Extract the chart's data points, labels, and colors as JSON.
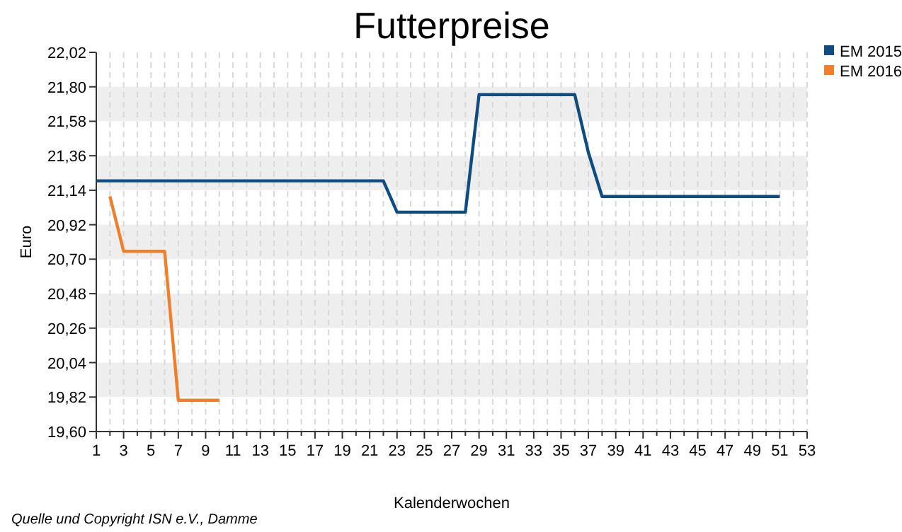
{
  "chart_data": {
    "type": "line",
    "title": "Futterpreise",
    "xlabel": "Kalenderwochen",
    "ylabel": "Euro",
    "annotations": [
      "Quelle und Copyright ISN e.V., Damme"
    ],
    "xlim": [
      1,
      53
    ],
    "xticks": [
      1,
      {
        "value": 2,
        "label": null
      },
      3,
      {
        "value": 4,
        "label": null
      },
      5,
      {
        "value": 6,
        "label": null
      },
      7,
      {
        "value": 8,
        "label": null
      },
      9,
      {
        "value": 10,
        "label": null
      },
      11,
      {
        "value": 12,
        "label": null
      },
      13,
      {
        "value": 14,
        "label": null
      },
      15,
      {
        "value": 16,
        "label": null
      },
      17,
      {
        "value": 18,
        "label": null
      },
      19,
      {
        "value": 20,
        "label": null
      },
      21,
      {
        "value": 22,
        "label": null
      },
      23,
      {
        "value": 24,
        "label": null
      },
      25,
      {
        "value": 26,
        "label": null
      },
      27,
      {
        "value": 28,
        "label": null
      },
      29,
      {
        "value": 30,
        "label": null
      },
      31,
      {
        "value": 32,
        "label": null
      },
      33,
      {
        "value": 34,
        "label": null
      },
      35,
      {
        "value": 36,
        "label": null
      },
      37,
      {
        "value": 38,
        "label": null
      },
      39,
      {
        "value": 40,
        "label": null
      },
      41,
      {
        "value": 42,
        "label": null
      },
      43,
      {
        "value": 44,
        "label": null
      },
      45,
      {
        "value": 46,
        "label": null
      },
      47,
      {
        "value": 48,
        "label": null
      },
      49,
      {
        "value": 50,
        "label": null
      },
      51,
      {
        "value": 52,
        "label": null
      },
      53
    ],
    "ylim": [
      19.6,
      22.02
    ],
    "yticks": [
      {
        "value": 19.6,
        "label": "19,60"
      },
      {
        "value": 19.82,
        "label": "19,82"
      },
      {
        "value": 20.04,
        "label": "20,04"
      },
      {
        "value": 20.26,
        "label": "20,26"
      },
      {
        "value": 20.48,
        "label": "20,48"
      },
      {
        "value": 20.7,
        "label": "20,70"
      },
      {
        "value": 20.92,
        "label": "20,92"
      },
      {
        "value": 21.14,
        "label": "21,14"
      },
      {
        "value": 21.36,
        "label": "21,36"
      },
      {
        "value": 21.58,
        "label": "21,58"
      },
      {
        "value": 21.8,
        "label": "21,80"
      },
      {
        "value": 22.02,
        "label": "22,02"
      }
    ],
    "grid": true,
    "legend": "top right",
    "marker": "none",
    "line_style": "solid",
    "series": [
      {
        "name": "EM 2015",
        "color": "#0f4c81",
        "x": [
          1,
          22,
          23,
          28,
          29,
          36,
          37,
          38,
          51
        ],
        "values": [
          21.2,
          21.2,
          21.0,
          21.0,
          21.75,
          21.75,
          21.38,
          21.1,
          21.1
        ]
      },
      {
        "name": "EM 2016",
        "color": "#f07f2c",
        "x": [
          2,
          3,
          6,
          7,
          10
        ],
        "values": [
          21.1,
          20.75,
          20.75,
          19.8,
          19.8
        ]
      }
    ]
  }
}
